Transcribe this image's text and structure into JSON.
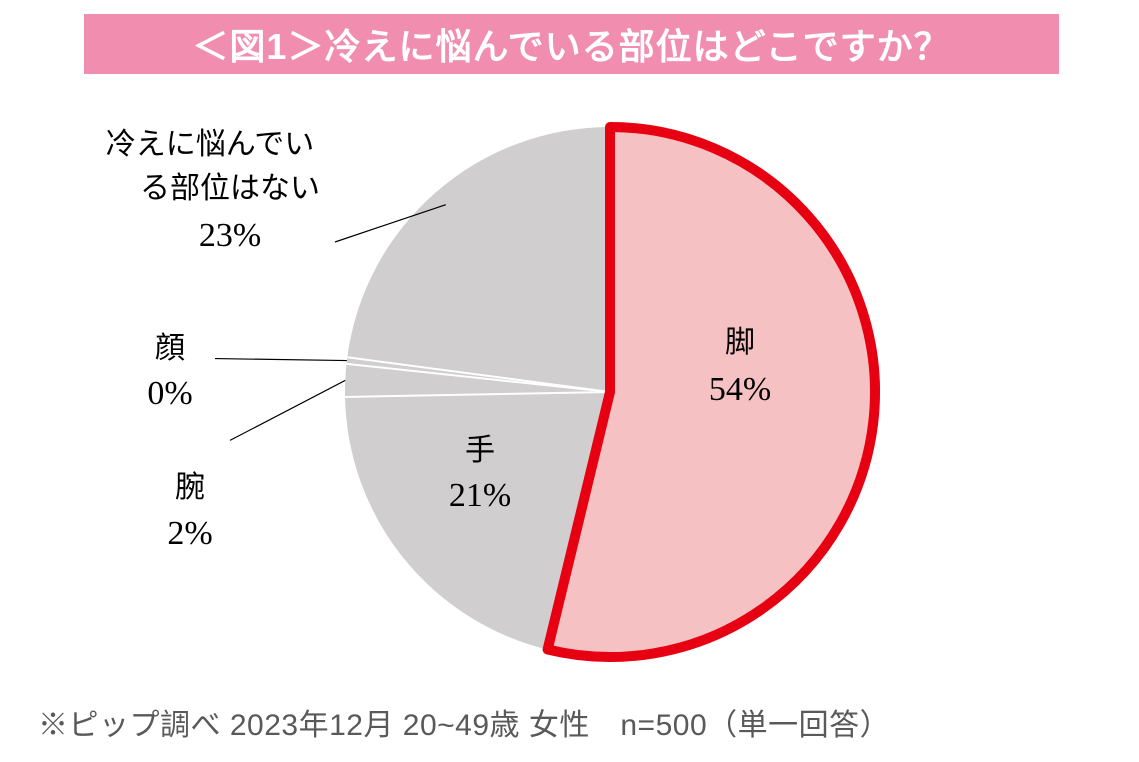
{
  "title": {
    "text": "＜図1＞冷えに悩んでいる部位はどこですか？",
    "bg_color": "#f18eb0",
    "text_color": "#ffffff",
    "font_size": 36
  },
  "footnote": "※ピップ調べ 2023年12月 20~49歳 女性　n=500（単一回答）",
  "chart": {
    "type": "pie",
    "background_color": "#ffffff",
    "label_fontsize_name": 30,
    "label_fontsize_pct": 34,
    "divider_color": "#ffffff",
    "divider_width": 2,
    "highlight_border_color": "#e60012",
    "highlight_border_width": 10,
    "slices": [
      {
        "label": "脚",
        "value": 54,
        "pct_text": "54%",
        "fill": "#f6c1c2",
        "highlight": true
      },
      {
        "label": "手",
        "value": 21,
        "pct_text": "21%",
        "fill": "#d0cece",
        "highlight": false
      },
      {
        "label": "腕",
        "value": 2,
        "pct_text": "2%",
        "fill": "#d0cece",
        "highlight": false
      },
      {
        "label": "顔",
        "value": 0.4,
        "pct_text": "0%",
        "fill": "#d0cece",
        "highlight": false
      },
      {
        "label": "冷えに悩んでいる部位はない",
        "value": 23,
        "pct_text": "23%",
        "fill": "#d0cece",
        "highlight": false
      }
    ],
    "inside_labels": {
      "leg_name": "脚",
      "leg_pct": "54%",
      "hand_name": "手",
      "hand_pct": "21%"
    },
    "outside_labels": {
      "none_line1": "冷えに悩んでい",
      "none_line2": "る部位はない",
      "none_pct": "23%",
      "face_name": "顔",
      "face_pct": "0%",
      "arm_name": "腕",
      "arm_pct": "2%"
    }
  }
}
